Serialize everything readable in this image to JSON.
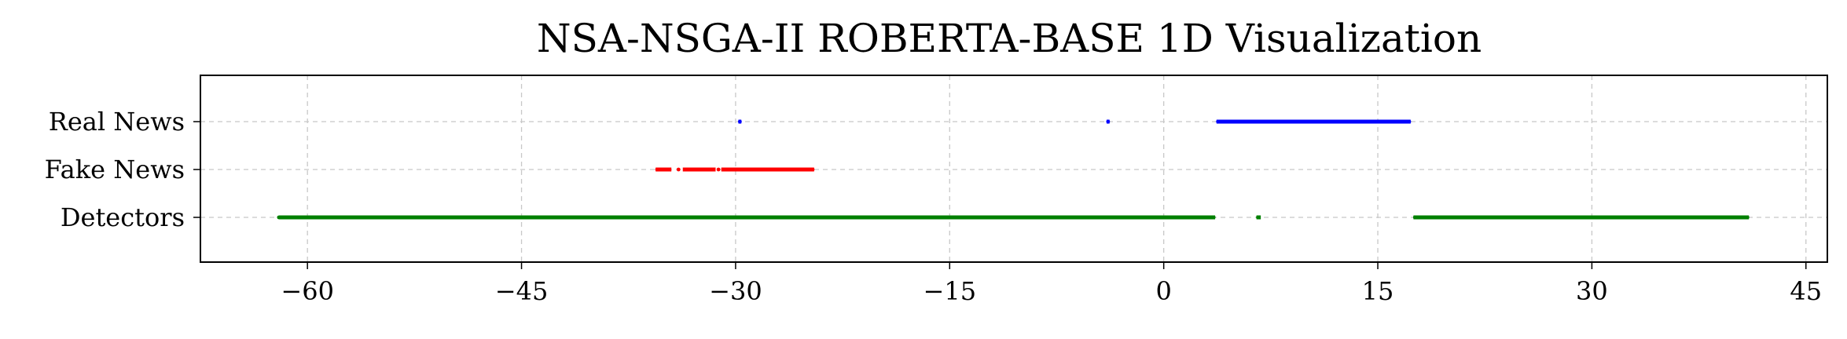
{
  "chart_data": {
    "type": "scatter",
    "title": "NSA-NSGA-II ROBERTA-BASE 1D Visualization",
    "xlabel": "",
    "ylabel": "",
    "xlim": [
      -67.5,
      46.5
    ],
    "x_ticks": [
      -60,
      -45,
      -30,
      -15,
      0,
      15,
      30,
      45
    ],
    "x_tick_labels": [
      "−60",
      "−45",
      "−30",
      "−15",
      "0",
      "15",
      "30",
      "45"
    ],
    "categories": [
      "Detectors",
      "Fake News",
      "Real News"
    ],
    "grid": true,
    "series": [
      {
        "name": "Real News",
        "color": "#0000ff",
        "segments": [
          [
            -29.8,
            -29.6
          ],
          [
            -4.0,
            -3.8
          ],
          [
            3.7,
            17.3
          ]
        ],
        "points": [
          -29.7,
          -3.9,
          3.8,
          4.5,
          5.3,
          6.0,
          6.7,
          7.4,
          8.1,
          8.8,
          9.5,
          10.2,
          10.9,
          11.6,
          12.3,
          13.0,
          13.7,
          14.4,
          15.1,
          15.8,
          16.5,
          17.2
        ]
      },
      {
        "name": "Fake News",
        "color": "#ff0000",
        "segments": [
          [
            -35.6,
            -34.5
          ],
          [
            -33.7,
            -31.4
          ],
          [
            -31.0,
            -24.5
          ]
        ],
        "points": [
          -35.5,
          -34.8,
          -34.0,
          -33.2,
          -32.5,
          -31.8,
          -31.2,
          -30.6,
          -30.0,
          -29.4,
          -28.8,
          -28.2,
          -27.6,
          -27.0,
          -26.4,
          -25.8,
          -25.2,
          -24.6
        ]
      },
      {
        "name": "Detectors",
        "color": "#008000",
        "segments": [
          [
            -62.0,
            3.6
          ],
          [
            6.5,
            6.8
          ],
          [
            17.5,
            41.0
          ]
        ],
        "points": [
          -62.0,
          -56.0,
          -50.0,
          -44.0,
          -38.0,
          -35.5,
          -32.0,
          -28.0,
          -26.0,
          -22.0,
          -16.0,
          -10.0,
          -4.0,
          -2.5,
          0.0,
          3.5,
          6.6,
          17.6,
          23.0,
          29.0,
          35.0,
          40.9
        ]
      }
    ]
  }
}
